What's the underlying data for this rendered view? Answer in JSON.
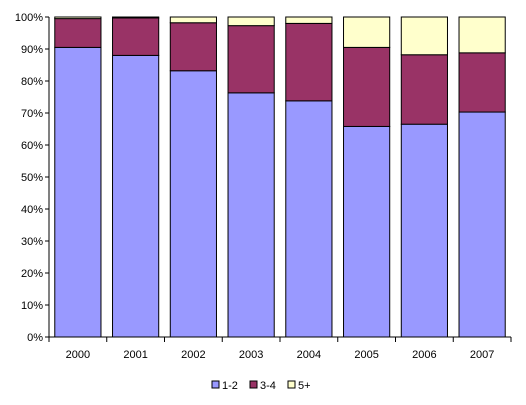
{
  "chart_data": {
    "type": "bar",
    "stacked": true,
    "percent": true,
    "categories": [
      "2000",
      "2001",
      "2002",
      "2003",
      "2004",
      "2005",
      "2006",
      "2007"
    ],
    "series": [
      {
        "name": "1-2",
        "color": "#9999ff",
        "values": [
          90.5,
          88,
          83.2,
          76.3,
          73.8,
          65.8,
          66.5,
          70.3
        ]
      },
      {
        "name": "3-4",
        "color": "#993366",
        "values": [
          9,
          11.7,
          15,
          21,
          24.2,
          24.7,
          21.7,
          18.5
        ]
      },
      {
        "name": "5+",
        "color": "#ffffcc",
        "values": [
          0.5,
          0.3,
          1.8,
          2.7,
          2,
          9.5,
          11.8,
          11.2
        ]
      }
    ],
    "y_ticks": [
      "0%",
      "10%",
      "20%",
      "30%",
      "40%",
      "50%",
      "60%",
      "70%",
      "80%",
      "90%",
      "100%"
    ],
    "ylim": [
      0,
      100
    ],
    "grid": false,
    "legend_position": "bottom"
  }
}
